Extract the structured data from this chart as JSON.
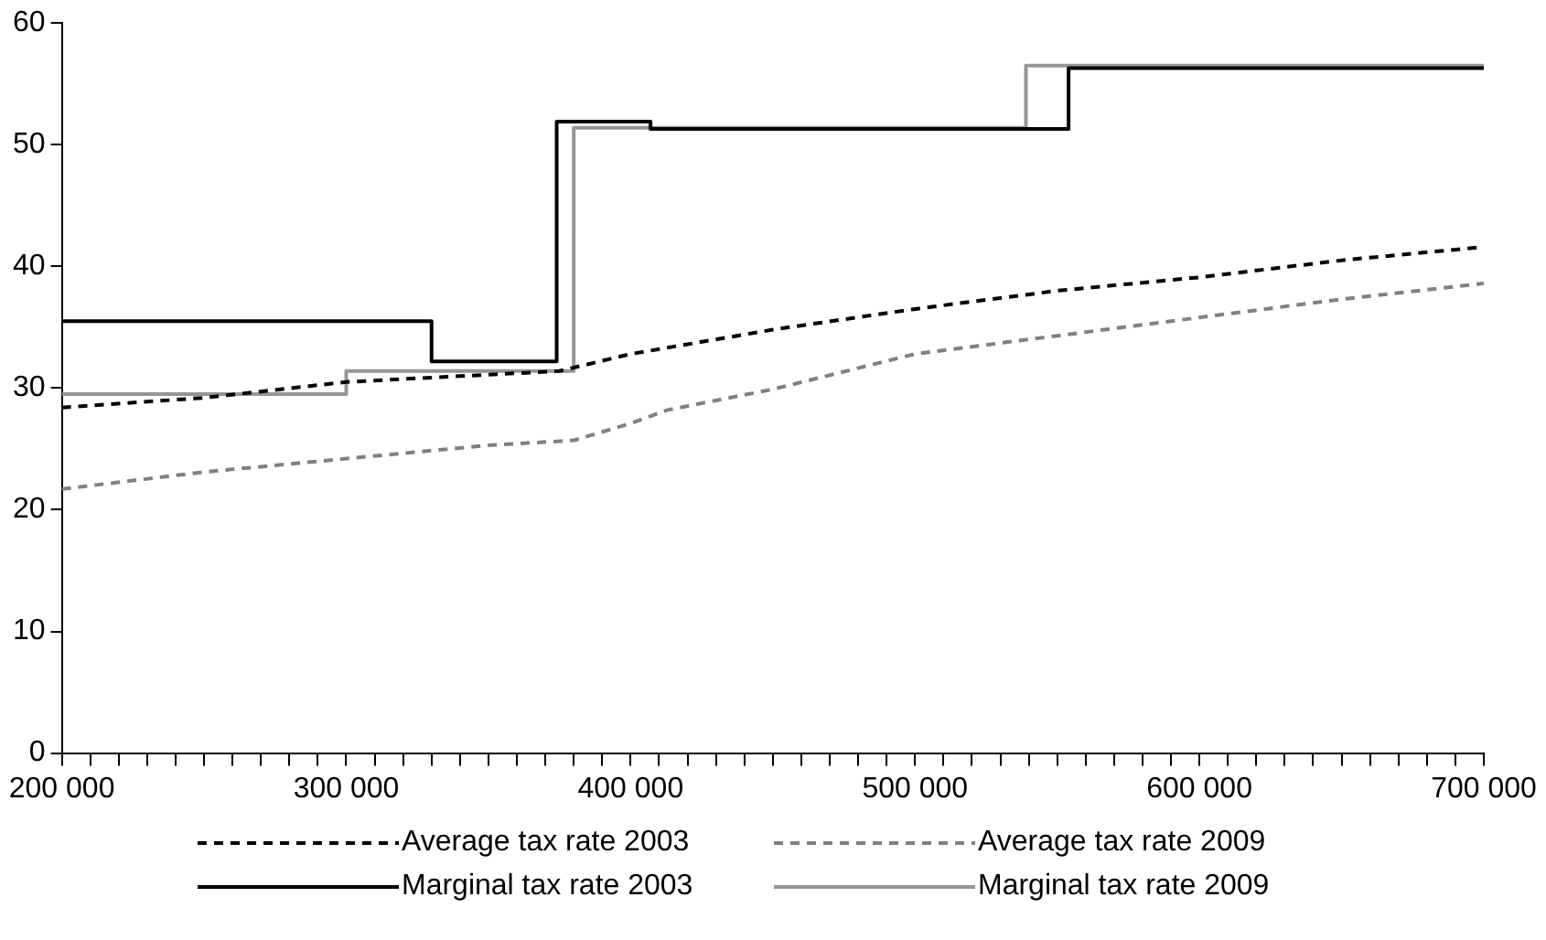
{
  "chart_data": {
    "type": "line",
    "xlim": [
      200000,
      700000
    ],
    "xticks": [
      {
        "value": 200000,
        "label": "200 000"
      },
      {
        "value": 210000,
        "label": null
      },
      {
        "value": 220000,
        "label": null
      },
      {
        "value": 230000,
        "label": null
      },
      {
        "value": 240000,
        "label": null
      },
      {
        "value": 250000,
        "label": null
      },
      {
        "value": 260000,
        "label": null
      },
      {
        "value": 270000,
        "label": null
      },
      {
        "value": 280000,
        "label": null
      },
      {
        "value": 290000,
        "label": null
      },
      {
        "value": 300000,
        "label": "300 000"
      },
      {
        "value": 310000,
        "label": null
      },
      {
        "value": 320000,
        "label": null
      },
      {
        "value": 330000,
        "label": null
      },
      {
        "value": 340000,
        "label": null
      },
      {
        "value": 350000,
        "label": null
      },
      {
        "value": 360000,
        "label": null
      },
      {
        "value": 370000,
        "label": null
      },
      {
        "value": 380000,
        "label": null
      },
      {
        "value": 390000,
        "label": null
      },
      {
        "value": 400000,
        "label": "400 000"
      },
      {
        "value": 410000,
        "label": null
      },
      {
        "value": 420000,
        "label": null
      },
      {
        "value": 430000,
        "label": null
      },
      {
        "value": 440000,
        "label": null
      },
      {
        "value": 450000,
        "label": null
      },
      {
        "value": 460000,
        "label": null
      },
      {
        "value": 470000,
        "label": null
      },
      {
        "value": 480000,
        "label": null
      },
      {
        "value": 490000,
        "label": null
      },
      {
        "value": 500000,
        "label": "500 000"
      },
      {
        "value": 510000,
        "label": null
      },
      {
        "value": 520000,
        "label": null
      },
      {
        "value": 530000,
        "label": null
      },
      {
        "value": 540000,
        "label": null
      },
      {
        "value": 550000,
        "label": null
      },
      {
        "value": 560000,
        "label": null
      },
      {
        "value": 570000,
        "label": null
      },
      {
        "value": 580000,
        "label": null
      },
      {
        "value": 590000,
        "label": null
      },
      {
        "value": 600000,
        "label": "600 000"
      },
      {
        "value": 610000,
        "label": null
      },
      {
        "value": 620000,
        "label": null
      },
      {
        "value": 630000,
        "label": null
      },
      {
        "value": 640000,
        "label": null
      },
      {
        "value": 650000,
        "label": null
      },
      {
        "value": 660000,
        "label": null
      },
      {
        "value": 670000,
        "label": null
      },
      {
        "value": 680000,
        "label": null
      },
      {
        "value": 690000,
        "label": null
      },
      {
        "value": 700000,
        "label": "700 000"
      }
    ],
    "ylim": [
      0,
      60
    ],
    "yticks": [
      0,
      10,
      20,
      30,
      40,
      50,
      60
    ],
    "grid": false,
    "legend": "bottom",
    "marker": "none",
    "series": [
      {
        "name": "Average tax rate 2003",
        "color": "#000000",
        "line_style": "dashed",
        "x": [
          200000,
          250000,
          300000,
          350000,
          375000,
          400000,
          450000,
          500000,
          550000,
          600000,
          650000,
          700000
        ],
        "values": [
          28.4,
          29.2,
          30.5,
          31.1,
          31.4,
          32.8,
          34.8,
          36.5,
          38.0,
          39.1,
          40.5,
          41.6
        ]
      },
      {
        "name": "Average tax rate 2009",
        "color": "#808080",
        "line_style": "dashed",
        "x": [
          200000,
          250000,
          300000,
          350000,
          380000,
          400000,
          413000,
          450000,
          500000,
          550000,
          600000,
          650000,
          700000
        ],
        "values": [
          21.7,
          23.1,
          24.2,
          25.3,
          25.7,
          27.1,
          28.2,
          29.9,
          32.8,
          34.3,
          35.8,
          37.3,
          38.6
        ]
      },
      {
        "name": "Marginal tax rate 2003",
        "type": "step",
        "color": "#000000",
        "line_style": "solid",
        "x": [
          200000,
          330000,
          374000,
          407000,
          554000,
          700000
        ],
        "values": [
          35.5,
          32.2,
          51.9,
          51.3,
          56.3,
          56.3
        ]
      },
      {
        "name": "Marginal tax rate 2009",
        "type": "step",
        "color": "#969696",
        "line_style": "solid",
        "x": [
          200000,
          300000,
          380000,
          539000,
          700000
        ],
        "values": [
          29.5,
          31.4,
          51.4,
          56.5,
          56.5
        ]
      }
    ]
  }
}
